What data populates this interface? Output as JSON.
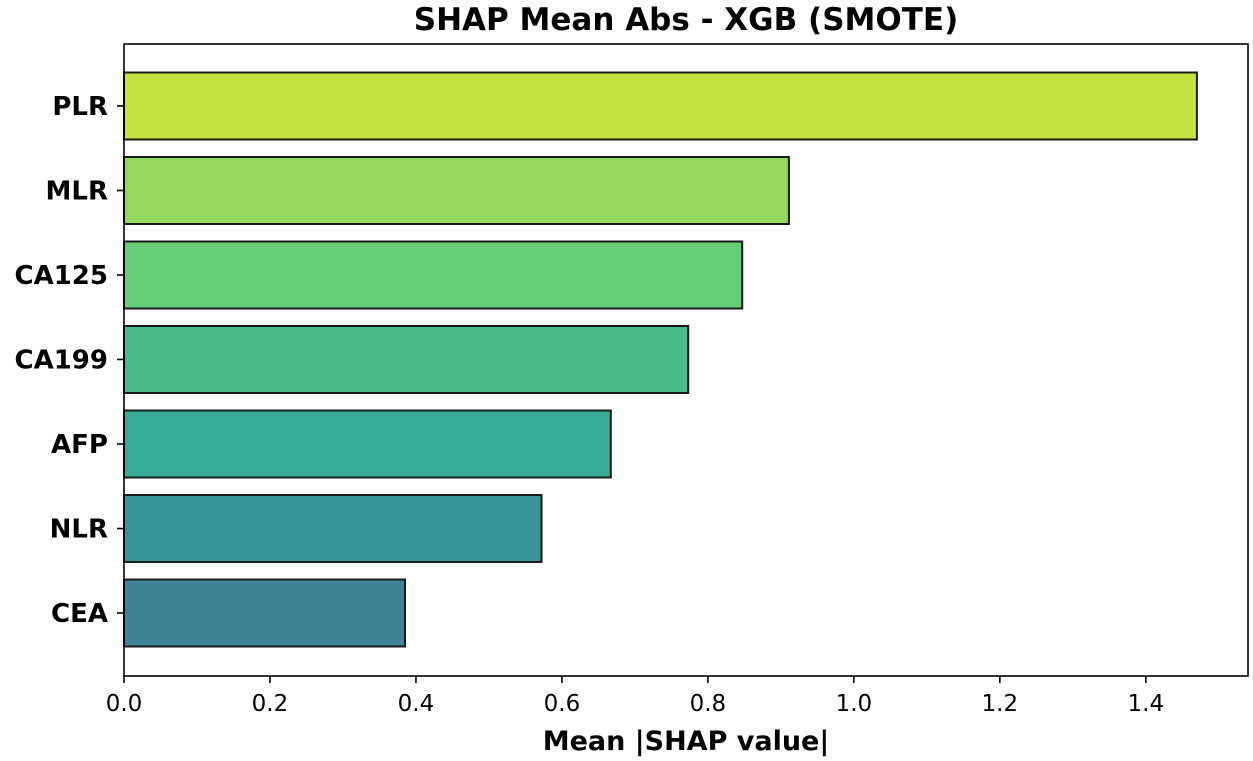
{
  "chart_data": {
    "type": "bar",
    "orientation": "horizontal",
    "title": "SHAP Mean Abs - XGB (SMOTE)",
    "xlabel": "Mean |SHAP value|",
    "ylabel": "",
    "xlim": [
      0,
      1.54
    ],
    "xticks": [
      0.0,
      0.2,
      0.4,
      0.6,
      0.8,
      1.0,
      1.2,
      1.4
    ],
    "xtick_labels": [
      "0.0",
      "0.2",
      "0.4",
      "0.6",
      "0.8",
      "1.0",
      "1.2",
      "1.4"
    ],
    "grid": false,
    "categories": [
      "PLR",
      "MLR",
      "CA125",
      "CA199",
      "AFP",
      "NLR",
      "CEA"
    ],
    "values": [
      1.47,
      0.911,
      0.847,
      0.773,
      0.667,
      0.572,
      0.385
    ],
    "colors": [
      "#c2e23d",
      "#95da5f",
      "#67cd78",
      "#49bd89",
      "#35aa94",
      "#389699",
      "#3f8399"
    ],
    "bar_edge_color": "#1a1a1a"
  }
}
